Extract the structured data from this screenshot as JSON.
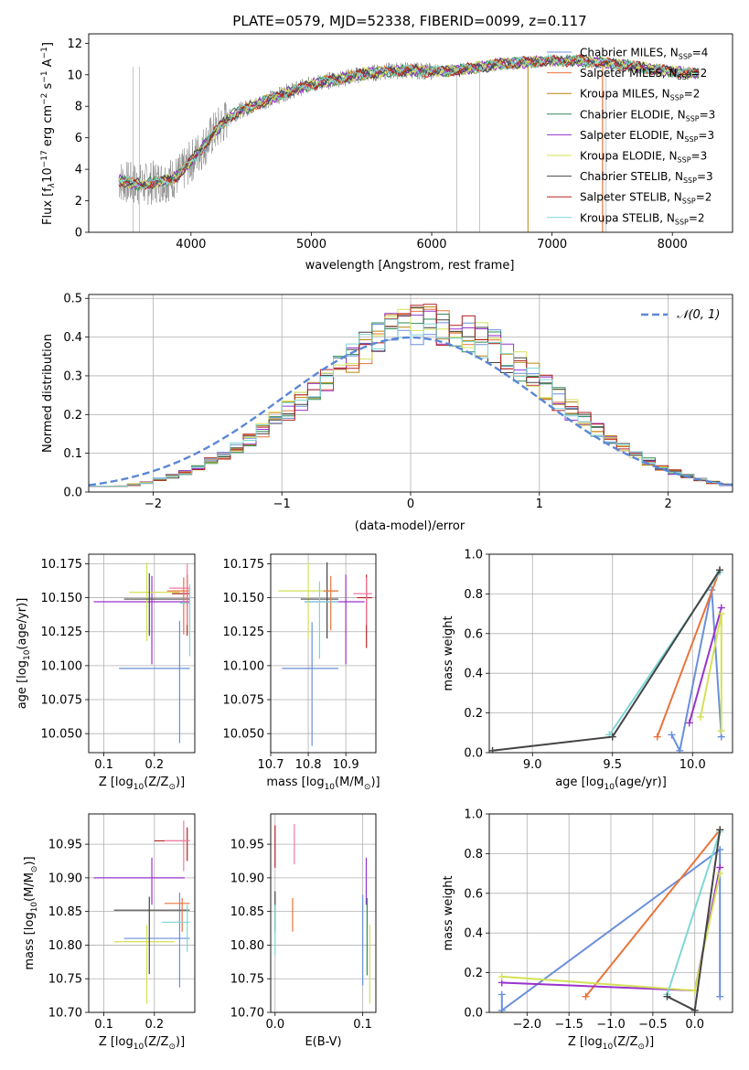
{
  "figure_title": "PLATE=0579, MJD=52338, FIBERID=0099, z=0.117",
  "colors": {
    "Chabrier MILES": "#6a8fdc",
    "Salpeter MILES": "#e8743b",
    "Kroupa MILES": "#b8860b",
    "Chabrier ELODIE": "#2e8b57",
    "Salpeter ELODIE": "#9932cc",
    "Kroupa ELODIE": "#d4e157",
    "Chabrier STELIB": "#444444",
    "Salpeter STELIB": "#b22222",
    "Kroupa STELIB": "#7fd6d6",
    "data": "#808080",
    "gauss": "#5b87d6",
    "pink": "#f07aa0"
  },
  "chart_data": [
    {
      "id": "spectrum",
      "type": "line",
      "title": "PLATE=0579, MJD=52338, FIBERID=0099, z=0.117",
      "xlabel": "wavelength [Angstrom, rest frame]",
      "ylabel": "Flux [f",
      "xlim": [
        3150,
        8500
      ],
      "ylim": [
        0,
        12.6
      ],
      "xticks": [
        4000,
        5000,
        6000,
        7000,
        8000
      ],
      "yticks": [
        0,
        2,
        4,
        6,
        8,
        10,
        12
      ],
      "grid": false,
      "legend_position": "top-right",
      "legend": [
        {
          "label": "Chabrier MILES, N",
          "sub": "SSP",
          "tail": "=4"
        },
        {
          "label": "Salpeter MILES, N",
          "sub": "SSP",
          "tail": "=2"
        },
        {
          "label": "Kroupa MILES, N",
          "sub": "SSP",
          "tail": "=2"
        },
        {
          "label": "Chabrier ELODIE, N",
          "sub": "SSP",
          "tail": "=3"
        },
        {
          "label": "Salpeter ELODIE, N",
          "sub": "SSP",
          "tail": "=3"
        },
        {
          "label": "Kroupa ELODIE, N",
          "sub": "SSP",
          "tail": "=3"
        },
        {
          "label": "Chabrier STELIB, N",
          "sub": "SSP",
          "tail": "=3"
        },
        {
          "label": "Salpeter STELIB, N",
          "sub": "SSP",
          "tail": "=2"
        },
        {
          "label": "Kroupa STELIB, N",
          "sub": "SSP",
          "tail": "=2"
        }
      ],
      "continuum": {
        "x": [
          3400,
          3500,
          3600,
          3700,
          3800,
          3900,
          4000,
          4100,
          4200,
          4300,
          4400,
          4500,
          4600,
          4800,
          5000,
          5200,
          5400,
          5600,
          5800,
          6000,
          6200,
          6400,
          6600,
          6800,
          7000,
          7200,
          7400,
          7600,
          7800,
          8000,
          8200
        ],
        "y": [
          3.3,
          3.1,
          3.0,
          3.2,
          3.3,
          3.6,
          4.5,
          5.4,
          6.4,
          7.2,
          7.7,
          8.0,
          8.3,
          8.9,
          9.4,
          9.7,
          10.0,
          10.2,
          10.3,
          10.2,
          10.3,
          10.5,
          10.7,
          10.8,
          10.9,
          10.9,
          10.8,
          10.6,
          10.4,
          10.2,
          10.1
        ]
      }
    },
    {
      "id": "residuals",
      "type": "step",
      "xlabel": "(data-model)/error",
      "ylabel": "Normed distribution",
      "xlim": [
        -2.5,
        2.5
      ],
      "ylim": [
        0,
        0.51
      ],
      "xticks": [
        -2,
        -1,
        0,
        1,
        2
      ],
      "yticks": [
        0.0,
        0.1,
        0.2,
        0.3,
        0.4,
        0.5
      ],
      "grid": true,
      "legend_position": "top-right",
      "legend": [
        {
          "label": "𝒩(0, 1)"
        }
      ],
      "bin_width": 0.1,
      "bin_start": -2.5,
      "mean": 0.15,
      "sigma": 0.92,
      "gaussian": {
        "mean": 0,
        "sigma": 1
      }
    },
    {
      "id": "age_vs_Z",
      "type": "errorbar",
      "xlabel": "Z [log",
      "ylabel": "age  [log",
      "xlim": [
        0.07,
        0.28
      ],
      "ylim": [
        10.036,
        10.182
      ],
      "xticks": [
        0.1,
        0.2
      ],
      "yticks": [
        10.05,
        10.075,
        10.1,
        10.125,
        10.15,
        10.175
      ],
      "grid": true,
      "points": [
        {
          "c": "Chabrier MILES",
          "x": 0.25,
          "xe": [
            0.13,
            0.27
          ],
          "y": 10.098,
          "ye": [
            10.043,
            10.133
          ]
        },
        {
          "c": "Salpeter ELODIE",
          "x": 0.195,
          "xe": [
            0.08,
            0.27
          ],
          "y": 10.147,
          "ye": [
            10.101,
            10.166
          ]
        },
        {
          "c": "Kroupa ELODIE",
          "x": 0.185,
          "xe": [
            0.15,
            0.25
          ],
          "y": 10.154,
          "ye": [
            10.118,
            10.176
          ]
        },
        {
          "c": "Chabrier STELIB",
          "x": 0.19,
          "xe": [
            0.14,
            0.27
          ],
          "y": 10.149,
          "ye": [
            10.122,
            10.168
          ]
        },
        {
          "c": "Salpeter STELIB",
          "x": 0.265,
          "xe": [
            0.235,
            0.27
          ],
          "y": 10.153,
          "ye": [
            10.122,
            10.167
          ]
        },
        {
          "c": "Salpeter MILES",
          "x": 0.258,
          "xe": [
            0.225,
            0.27
          ],
          "y": 10.155,
          "ye": [
            10.123,
            10.165
          ]
        },
        {
          "c": "Kroupa STELIB",
          "x": 0.27,
          "xe": [
            0.25,
            0.27
          ],
          "y": 10.146,
          "ye": [
            10.107,
            10.16
          ]
        },
        {
          "c": "pink",
          "x": 0.265,
          "xe": [
            0.23,
            0.27
          ],
          "y": 10.157,
          "ye": [
            10.13,
            10.175
          ]
        }
      ]
    },
    {
      "id": "age_vs_mass",
      "type": "errorbar",
      "xlabel": "mass [log",
      "xlim": [
        10.7,
        10.98
      ],
      "ylim": [
        10.036,
        10.182
      ],
      "xticks": [
        10.7,
        10.8,
        10.9
      ],
      "yticks": [
        10.05,
        10.075,
        10.1,
        10.125,
        10.15,
        10.175
      ],
      "grid": true,
      "points": [
        {
          "c": "Chabrier MILES",
          "x": 10.81,
          "xe": [
            10.73,
            10.88
          ],
          "y": 10.098,
          "ye": [
            10.041,
            10.132
          ]
        },
        {
          "c": "Salpeter ELODIE",
          "x": 10.9,
          "xe": [
            10.79,
            10.95
          ],
          "y": 10.147,
          "ye": [
            10.101,
            10.167
          ]
        },
        {
          "c": "Kroupa ELODIE",
          "x": 10.8,
          "xe": [
            10.72,
            10.88
          ],
          "y": 10.155,
          "ye": [
            10.12,
            10.176
          ]
        },
        {
          "c": "Chabrier STELIB",
          "x": 10.85,
          "xe": [
            10.78,
            10.88
          ],
          "y": 10.149,
          "ye": [
            10.12,
            10.176
          ]
        },
        {
          "c": "Salpeter STELIB",
          "x": 10.955,
          "xe": [
            10.93,
            10.97
          ],
          "y": 10.15,
          "ye": [
            10.113,
            10.167
          ]
        },
        {
          "c": "Salpeter MILES",
          "x": 10.86,
          "xe": [
            10.84,
            10.88
          ],
          "y": 10.155,
          "ye": [
            10.126,
            10.166
          ]
        },
        {
          "c": "Kroupa STELIB",
          "x": 10.83,
          "xe": [
            10.79,
            10.88
          ],
          "y": 10.147,
          "ye": [
            10.105,
            10.162
          ]
        },
        {
          "c": "pink",
          "x": 10.955,
          "xe": [
            10.92,
            10.97
          ],
          "y": 10.153,
          "ye": [
            10.13,
            10.165
          ]
        }
      ]
    },
    {
      "id": "weight_vs_age",
      "type": "line",
      "xlabel": "age  [log",
      "ylabel": "mass weight",
      "xlim": [
        8.73,
        10.25
      ],
      "ylim": [
        0,
        1.0
      ],
      "xticks": [
        9.0,
        9.5,
        10.0
      ],
      "yticks": [
        0.0,
        0.2,
        0.4,
        0.6,
        0.8,
        1.0
      ],
      "grid": true,
      "series": [
        {
          "c": "Chabrier MILES",
          "x": [
            9.87,
            9.92,
            10.12,
            10.18
          ],
          "y": [
            0.09,
            0.01,
            0.82,
            0.08
          ]
        },
        {
          "c": "Salpeter MILES",
          "x": [
            9.78,
            10.17
          ],
          "y": [
            0.08,
            0.92
          ]
        },
        {
          "c": "Salpeter ELODIE",
          "x": [
            9.98,
            10.18
          ],
          "y": [
            0.15,
            0.73
          ]
        },
        {
          "c": "Kroupa ELODIE",
          "x": [
            10.05,
            10.18,
            10.18
          ],
          "y": [
            0.18,
            0.7,
            0.11
          ]
        },
        {
          "c": "Kroupa STELIB",
          "x": [
            9.48,
            10.17
          ],
          "y": [
            0.09,
            0.91
          ]
        },
        {
          "c": "Chabrier STELIB",
          "x": [
            8.75,
            9.5,
            10.17
          ],
          "y": [
            0.01,
            0.08,
            0.92
          ]
        }
      ]
    },
    {
      "id": "mass_vs_Z",
      "type": "errorbar",
      "xlabel": "Z [log",
      "ylabel": "mass [log",
      "xlim": [
        0.07,
        0.28
      ],
      "ylim": [
        10.7,
        10.995
      ],
      "xticks": [
        0.1,
        0.2
      ],
      "yticks": [
        10.7,
        10.75,
        10.8,
        10.85,
        10.9,
        10.95
      ],
      "grid": true,
      "points": [
        {
          "c": "Chabrier MILES",
          "x": 0.25,
          "xe": [
            0.14,
            0.27
          ],
          "y": 10.81,
          "ye": [
            10.737,
            10.878
          ]
        },
        {
          "c": "Salpeter ELODIE",
          "x": 0.195,
          "xe": [
            0.08,
            0.26
          ],
          "y": 10.9,
          "ye": [
            10.86,
            10.93
          ]
        },
        {
          "c": "Kroupa ELODIE",
          "x": 0.185,
          "xe": [
            0.12,
            0.24
          ],
          "y": 10.805,
          "ye": [
            10.713,
            10.83
          ]
        },
        {
          "c": "Chabrier STELIB",
          "x": 0.19,
          "xe": [
            0.12,
            0.27
          ],
          "y": 10.852,
          "ye": [
            10.757,
            10.872
          ]
        },
        {
          "c": "Salpeter STELIB",
          "x": 0.265,
          "xe": [
            0.2,
            0.27
          ],
          "y": 10.955,
          "ye": [
            10.925,
            10.975
          ]
        },
        {
          "c": "Salpeter MILES",
          "x": 0.255,
          "xe": [
            0.22,
            0.27
          ],
          "y": 10.862,
          "ye": [
            10.82,
            10.87
          ]
        },
        {
          "c": "Kroupa STELIB",
          "x": 0.265,
          "xe": [
            0.215,
            0.27
          ],
          "y": 10.834,
          "ye": [
            10.79,
            10.86
          ]
        },
        {
          "c": "pink",
          "x": 0.258,
          "xe": [
            0.22,
            0.27
          ],
          "y": 10.955,
          "ye": [
            10.91,
            10.985
          ]
        }
      ]
    },
    {
      "id": "mass_vs_ebv",
      "type": "errorbar",
      "xlabel": "E(B-V)",
      "xlim": [
        -0.005,
        0.115
      ],
      "ylim": [
        10.7,
        10.995
      ],
      "xticks": [
        0.0,
        0.1
      ],
      "yticks": [
        10.7,
        10.75,
        10.8,
        10.85,
        10.9,
        10.95
      ],
      "grid": true,
      "points": [
        {
          "c": "Salpeter STELIB",
          "x": 0.0,
          "y": 10.94,
          "ye": [
            10.915,
            10.978
          ]
        },
        {
          "c": "Chabrier STELIB",
          "x": 0.0,
          "y": 10.86,
          "ye": [
            10.82,
            10.88
          ]
        },
        {
          "c": "Kroupa STELIB",
          "x": 0.0,
          "y": 10.83,
          "ye": [
            10.785,
            10.86
          ]
        },
        {
          "c": "Salpeter MILES",
          "x": 0.02,
          "y": 10.845,
          "ye": [
            10.82,
            10.87
          ]
        },
        {
          "c": "pink",
          "x": 0.022,
          "y": 10.955,
          "ye": [
            10.92,
            10.98
          ]
        },
        {
          "c": "Chabrier MILES",
          "x": 0.1,
          "y": 10.81,
          "ye": [
            10.74,
            10.875
          ]
        },
        {
          "c": "Salpeter ELODIE",
          "x": 0.104,
          "y": 10.9,
          "ye": [
            10.86,
            10.93
          ]
        },
        {
          "c": "Chabrier ELODIE",
          "x": 0.105,
          "y": 10.8,
          "ye": [
            10.755,
            10.87
          ]
        },
        {
          "c": "Kroupa ELODIE",
          "x": 0.108,
          "y": 10.77,
          "ye": [
            10.713,
            10.83
          ]
        }
      ]
    },
    {
      "id": "weight_vs_Z",
      "type": "line",
      "xlabel": "Z [log",
      "ylabel": "mass weight",
      "xlim": [
        -2.45,
        0.45
      ],
      "ylim": [
        0,
        1.0
      ],
      "xticks": [
        -2.0,
        -1.5,
        -1.0,
        -0.5,
        0.0
      ],
      "yticks": [
        0.0,
        0.2,
        0.4,
        0.6,
        0.8,
        1.0
      ],
      "grid": true,
      "series": [
        {
          "c": "Chabrier MILES",
          "x": [
            -2.3,
            -2.3,
            0.3,
            0.3
          ],
          "y": [
            0.09,
            0.01,
            0.82,
            0.08
          ]
        },
        {
          "c": "Salpeter MILES",
          "x": [
            -1.3,
            0.3
          ],
          "y": [
            0.08,
            0.92
          ]
        },
        {
          "c": "Salpeter ELODIE",
          "x": [
            -2.3,
            0.0,
            0.3
          ],
          "y": [
            0.15,
            0.11,
            0.73
          ]
        },
        {
          "c": "Kroupa ELODIE",
          "x": [
            -2.3,
            0.0,
            0.3
          ],
          "y": [
            0.18,
            0.11,
            0.7
          ]
        },
        {
          "c": "Kroupa STELIB",
          "x": [
            -0.33,
            0.3
          ],
          "y": [
            0.09,
            0.91
          ]
        },
        {
          "c": "Chabrier STELIB",
          "x": [
            -0.33,
            0.0,
            0.3
          ],
          "y": [
            0.08,
            0.01,
            0.92
          ]
        }
      ]
    }
  ]
}
